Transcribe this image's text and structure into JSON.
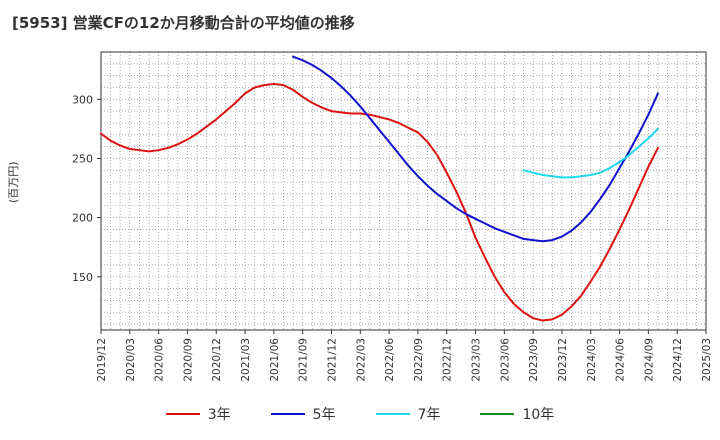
{
  "chart_data": {
    "type": "line",
    "title": "[5953]  営業CFの12か月移動合計の平均値の推移",
    "ylabel": "(百万円)",
    "xlabel": "",
    "ylim": [
      105,
      340
    ],
    "yticks": [
      150,
      200,
      250,
      300
    ],
    "x_tick_labels": [
      "2019/12",
      "2020/03",
      "2020/06",
      "2020/09",
      "2020/12",
      "2021/03",
      "2021/06",
      "2021/09",
      "2021/12",
      "2022/03",
      "2022/06",
      "2022/09",
      "2022/12",
      "2023/03",
      "2023/06",
      "2023/09",
      "2023/12",
      "2024/03",
      "2024/06",
      "2024/09",
      "2024/12",
      "2025/03"
    ],
    "grid": true,
    "legend_position": "bottom",
    "series": [
      {
        "name": "3年",
        "color": "#dd1111",
        "points": [
          [
            "2019/12",
            271
          ],
          [
            "2020/01",
            265
          ],
          [
            "2020/02",
            261
          ],
          [
            "2020/03",
            258
          ],
          [
            "2020/04",
            257
          ],
          [
            "2020/05",
            256
          ],
          [
            "2020/06",
            257
          ],
          [
            "2020/07",
            259
          ],
          [
            "2020/08",
            262
          ],
          [
            "2020/09",
            266
          ],
          [
            "2020/10",
            271
          ],
          [
            "2020/11",
            277
          ],
          [
            "2020/12",
            283
          ],
          [
            "2021/01",
            290
          ],
          [
            "2021/02",
            297
          ],
          [
            "2021/03",
            305
          ],
          [
            "2021/04",
            310
          ],
          [
            "2021/05",
            312
          ],
          [
            "2021/06",
            313
          ],
          [
            "2021/07",
            312
          ],
          [
            "2021/08",
            308
          ],
          [
            "2021/09",
            302
          ],
          [
            "2021/10",
            297
          ],
          [
            "2021/11",
            293
          ],
          [
            "2021/12",
            290
          ],
          [
            "2022/01",
            289
          ],
          [
            "2022/02",
            288
          ],
          [
            "2022/03",
            288
          ],
          [
            "2022/04",
            287
          ],
          [
            "2022/05",
            285
          ],
          [
            "2022/06",
            283
          ],
          [
            "2022/07",
            280
          ],
          [
            "2022/08",
            276
          ],
          [
            "2022/09",
            272
          ],
          [
            "2022/10",
            264
          ],
          [
            "2022/11",
            253
          ],
          [
            "2022/12",
            238
          ],
          [
            "2023/01",
            222
          ],
          [
            "2023/02",
            204
          ],
          [
            "2023/03",
            183
          ],
          [
            "2023/04",
            166
          ],
          [
            "2023/05",
            150
          ],
          [
            "2023/06",
            137
          ],
          [
            "2023/07",
            127
          ],
          [
            "2023/08",
            120
          ],
          [
            "2023/09",
            115
          ],
          [
            "2023/10",
            113
          ],
          [
            "2023/11",
            114
          ],
          [
            "2023/12",
            118
          ],
          [
            "2024/01",
            125
          ],
          [
            "2024/02",
            134
          ],
          [
            "2024/03",
            146
          ],
          [
            "2024/04",
            159
          ],
          [
            "2024/05",
            174
          ],
          [
            "2024/06",
            190
          ],
          [
            "2024/07",
            207
          ],
          [
            "2024/08",
            225
          ],
          [
            "2024/09",
            243
          ],
          [
            "2024/10",
            259
          ]
        ]
      },
      {
        "name": "5年",
        "color": "#1111cc",
        "points": [
          [
            "2021/08",
            336
          ],
          [
            "2021/09",
            333
          ],
          [
            "2021/10",
            329
          ],
          [
            "2021/11",
            324
          ],
          [
            "2021/12",
            318
          ],
          [
            "2022/01",
            311
          ],
          [
            "2022/02",
            303
          ],
          [
            "2022/03",
            294
          ],
          [
            "2022/04",
            284
          ],
          [
            "2022/05",
            274
          ],
          [
            "2022/06",
            264
          ],
          [
            "2022/07",
            254
          ],
          [
            "2022/08",
            244
          ],
          [
            "2022/09",
            235
          ],
          [
            "2022/10",
            227
          ],
          [
            "2022/11",
            220
          ],
          [
            "2022/12",
            214
          ],
          [
            "2023/01",
            208
          ],
          [
            "2023/02",
            203
          ],
          [
            "2023/03",
            199
          ],
          [
            "2023/04",
            195
          ],
          [
            "2023/05",
            191
          ],
          [
            "2023/06",
            188
          ],
          [
            "2023/07",
            185
          ],
          [
            "2023/08",
            182
          ],
          [
            "2023/09",
            181
          ],
          [
            "2023/10",
            180
          ],
          [
            "2023/11",
            181
          ],
          [
            "2023/12",
            184
          ],
          [
            "2024/01",
            189
          ],
          [
            "2024/02",
            196
          ],
          [
            "2024/03",
            205
          ],
          [
            "2024/04",
            216
          ],
          [
            "2024/05",
            228
          ],
          [
            "2024/06",
            242
          ],
          [
            "2024/07",
            256
          ],
          [
            "2024/08",
            271
          ],
          [
            "2024/09",
            287
          ],
          [
            "2024/10",
            305
          ]
        ]
      },
      {
        "name": "7年",
        "color": "#22d8ee",
        "points": [
          [
            "2023/08",
            240
          ],
          [
            "2023/09",
            238
          ],
          [
            "2023/10",
            236
          ],
          [
            "2023/11",
            235
          ],
          [
            "2023/12",
            234
          ],
          [
            "2024/01",
            234
          ],
          [
            "2024/02",
            235
          ],
          [
            "2024/03",
            236
          ],
          [
            "2024/04",
            238
          ],
          [
            "2024/05",
            242
          ],
          [
            "2024/06",
            247
          ],
          [
            "2024/07",
            253
          ],
          [
            "2024/08",
            260
          ],
          [
            "2024/09",
            267
          ],
          [
            "2024/10",
            275
          ]
        ]
      },
      {
        "name": "10年",
        "color": "#228822",
        "points": []
      }
    ]
  }
}
